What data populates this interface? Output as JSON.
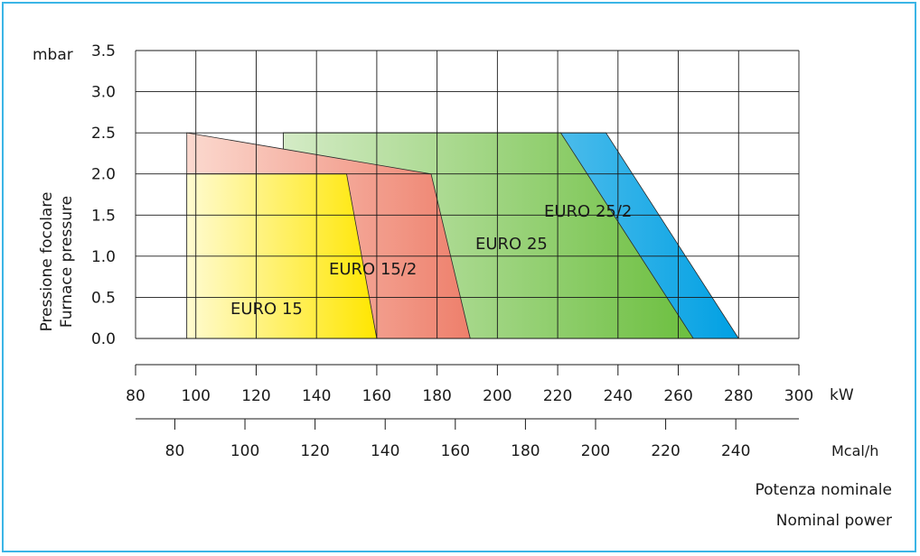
{
  "chart_data": {
    "type": "area",
    "y_unit": "mbar",
    "ylabel": [
      "Pressione focolare",
      "Furnace pressure"
    ],
    "xlabel": [
      "Potenza nominale",
      "Nominal power"
    ],
    "ylim": [
      0,
      3.5
    ],
    "yticks": [
      "0.0",
      "0.5",
      "1.0",
      "1.5",
      "2.0",
      "2.5",
      "3.0",
      "3.5"
    ],
    "x_kw": {
      "unit": "kW",
      "range": [
        80,
        300
      ],
      "ticks": [
        "80",
        "100",
        "120",
        "140",
        "160",
        "180",
        "200",
        "220",
        "240",
        "260",
        "280",
        "300"
      ]
    },
    "x_mcal": {
      "unit": "Mcal/h",
      "ticks": [
        "80",
        "100",
        "120",
        "140",
        "160",
        "180",
        "200",
        "220",
        "240"
      ]
    },
    "grid": true,
    "series": [
      {
        "name": "EURO 25/2",
        "color": "#00a0e3",
        "polygon_kw": [
          [
            129,
            2.5
          ],
          [
            236,
            2.5
          ],
          [
            280,
            0
          ],
          [
            129,
            0
          ]
        ]
      },
      {
        "name": "EURO 25",
        "color": "#6cbf3f",
        "polygon_kw": [
          [
            129,
            2.5
          ],
          [
            221,
            2.5
          ],
          [
            265,
            0
          ],
          [
            129,
            0
          ]
        ]
      },
      {
        "name": "EURO 15/2",
        "color": "#ee7f6b",
        "polygon_kw": [
          [
            97,
            2.5
          ],
          [
            178,
            2.0
          ],
          [
            191,
            0
          ],
          [
            97,
            0
          ]
        ]
      },
      {
        "name": "EURO 15",
        "color": "#ffe600",
        "polygon_kw": [
          [
            97,
            2.0
          ],
          [
            150,
            2.0
          ],
          [
            160,
            0
          ],
          [
            97,
            0
          ]
        ]
      }
    ]
  }
}
